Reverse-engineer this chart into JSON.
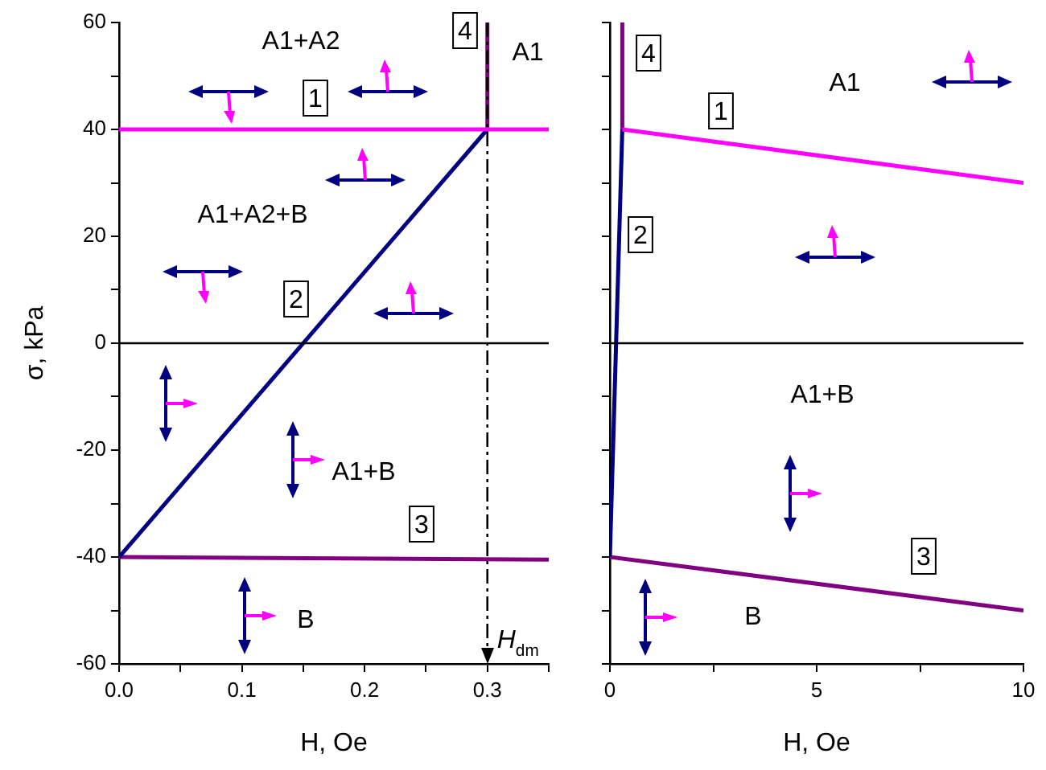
{
  "chart_data": [
    {
      "type": "line",
      "xlabel": "H, Oe",
      "ylabel": "σ, kPa",
      "xlim": [
        0,
        0.35
      ],
      "ylim": [
        -60,
        60
      ],
      "xticks": [
        {
          "value": 0,
          "label": "0.0"
        },
        {
          "value": 0.05,
          "label": null
        },
        {
          "value": 0.1,
          "label": "0.1"
        },
        {
          "value": 0.15,
          "label": null
        },
        {
          "value": 0.2,
          "label": "0.2"
        },
        {
          "value": 0.25,
          "label": null
        },
        {
          "value": 0.3,
          "label": "0.3"
        },
        {
          "value": 0.35,
          "label": null
        }
      ],
      "yticks": [
        -60,
        {
          "value": -50,
          "label": null
        },
        -40,
        {
          "value": -30,
          "label": null
        },
        -20,
        {
          "value": -10,
          "label": null
        },
        0,
        {
          "value": 10,
          "label": null
        },
        20,
        {
          "value": 30,
          "label": null
        },
        40,
        {
          "value": 50,
          "label": null
        },
        60
      ],
      "series": [
        {
          "color": "#ff00ff",
          "x": [
            0,
            0.35
          ],
          "values": [
            40,
            40
          ]
        },
        {
          "color": "#000080",
          "x": [
            0,
            0.3
          ],
          "values": [
            -40,
            40
          ]
        },
        {
          "color": "#800080",
          "x": [
            0,
            0.35
          ],
          "values": [
            -40,
            -40.5
          ]
        },
        {
          "color": "#800080",
          "x": [
            0.3,
            0.3
          ],
          "values": [
            40,
            60
          ]
        }
      ],
      "ref_lines": [
        {
          "axis": "y",
          "value": 0,
          "color": "#000000",
          "line_style": "solid"
        },
        {
          "axis": "x",
          "value": 0.3,
          "label": "H$_{dm}$",
          "color": "#000000",
          "line_style": "dashed"
        }
      ],
      "annotations": [
        "A1+A2",
        "A1",
        "A1+A2+B",
        "A1+B",
        "B",
        "1",
        "2",
        "3",
        "4"
      ],
      "grid": false,
      "legend": false,
      "marker": "none",
      "line_style": "solid"
    },
    {
      "type": "line",
      "xlabel": "H, Oe",
      "xlim": [
        0,
        10
      ],
      "ylim": [
        -60,
        60
      ],
      "xticks": [
        0,
        {
          "value": 2.5,
          "label": null
        },
        5,
        {
          "value": 7.5,
          "label": null
        },
        10
      ],
      "yticks": [
        -60,
        -50,
        -40,
        -30,
        -20,
        -10,
        0,
        10,
        20,
        30,
        40,
        50,
        60
      ],
      "tick_labels": "x",
      "series": [
        {
          "color": "#ff00ff",
          "x": [
            0.3,
            10
          ],
          "values": [
            40,
            30
          ]
        },
        {
          "color": "#000080",
          "x": [
            0,
            0.3
          ],
          "values": [
            -40,
            40
          ]
        },
        {
          "color": "#800080",
          "x": [
            0,
            10
          ],
          "values": [
            -40,
            -50
          ]
        },
        {
          "color": "#800080",
          "x": [
            0.3,
            0.3
          ],
          "values": [
            40,
            60
          ]
        }
      ],
      "ref_lines": [
        {
          "axis": "y",
          "value": 0,
          "color": "#000000",
          "line_style": "solid"
        }
      ],
      "annotations": [
        "A1",
        "A1+B",
        "B",
        "1",
        "2",
        "3",
        "4"
      ],
      "grid": false,
      "legend": false,
      "marker": "none",
      "line_style": "solid"
    }
  ]
}
